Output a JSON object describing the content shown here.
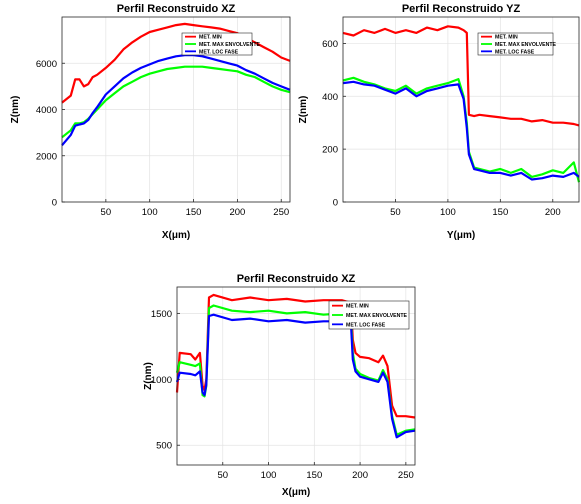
{
  "chart_data": [
    {
      "type": "line",
      "title": "Perfil Reconstruido XZ",
      "xlabel": "X(μm)",
      "ylabel": "Z(nm)",
      "xlim": [
        0,
        260
      ],
      "ylim": [
        0,
        8000
      ],
      "xticks": [
        "50",
        "100",
        "150",
        "200",
        "250"
      ],
      "yticks": [
        "0",
        "2000",
        "4000",
        "6000"
      ],
      "grid": true,
      "legend_position": "top-right",
      "x": [
        0,
        10,
        15,
        20,
        25,
        30,
        35,
        40,
        50,
        60,
        70,
        80,
        90,
        100,
        110,
        120,
        130,
        140,
        150,
        160,
        170,
        180,
        190,
        200,
        210,
        220,
        230,
        240,
        250,
        260
      ],
      "series": [
        {
          "name": "MET. MIN",
          "color": "#ff0000",
          "values": [
            4300,
            4600,
            5300,
            5300,
            5000,
            5100,
            5400,
            5500,
            5800,
            6150,
            6600,
            6900,
            7150,
            7350,
            7450,
            7550,
            7650,
            7700,
            7650,
            7600,
            7550,
            7500,
            7400,
            7300,
            7100,
            6900,
            6700,
            6500,
            6250,
            6100
          ]
        },
        {
          "name": "MET. MAX ENVOLVENTE",
          "color": "#00ff00",
          "values": [
            2800,
            3100,
            3400,
            3400,
            3450,
            3600,
            3800,
            4000,
            4400,
            4700,
            5000,
            5200,
            5400,
            5550,
            5650,
            5750,
            5800,
            5850,
            5850,
            5850,
            5800,
            5750,
            5700,
            5650,
            5500,
            5400,
            5200,
            5000,
            4850,
            4750
          ]
        },
        {
          "name": "MET. LOC FASE",
          "color": "#0000ff",
          "values": [
            2450,
            2900,
            3300,
            3350,
            3400,
            3550,
            3850,
            4100,
            4650,
            5000,
            5350,
            5600,
            5800,
            5950,
            6100,
            6200,
            6300,
            6350,
            6350,
            6300,
            6200,
            6100,
            6000,
            5900,
            5700,
            5550,
            5350,
            5150,
            5000,
            4850
          ]
        }
      ]
    },
    {
      "type": "line",
      "title": "Perfil Reconstruido YZ",
      "xlabel": "Y(μm)",
      "ylabel": "Z(nm)",
      "xlim": [
        0,
        225
      ],
      "ylim": [
        0,
        700
      ],
      "xticks": [
        "50",
        "100",
        "150",
        "200"
      ],
      "yticks": [
        "0",
        "200",
        "400",
        "600"
      ],
      "grid": true,
      "legend_position": "top-right",
      "x": [
        0,
        10,
        20,
        30,
        40,
        50,
        60,
        70,
        80,
        90,
        100,
        110,
        115,
        118,
        120,
        125,
        130,
        140,
        150,
        160,
        170,
        180,
        190,
        200,
        210,
        220,
        225
      ],
      "series": [
        {
          "name": "MET. MIN",
          "color": "#ff0000",
          "values": [
            640,
            630,
            650,
            640,
            655,
            640,
            650,
            640,
            660,
            650,
            665,
            660,
            650,
            640,
            330,
            325,
            330,
            325,
            320,
            315,
            315,
            305,
            310,
            300,
            300,
            295,
            290
          ]
        },
        {
          "name": "MET. MAX ENVOLVENTE",
          "color": "#00ff00",
          "values": [
            460,
            470,
            455,
            445,
            430,
            420,
            440,
            410,
            430,
            440,
            450,
            465,
            400,
            300,
            190,
            130,
            125,
            115,
            125,
            110,
            125,
            95,
            105,
            120,
            110,
            150,
            75
          ]
        },
        {
          "name": "MET. LOC FASE",
          "color": "#0000ff",
          "values": [
            450,
            455,
            445,
            440,
            425,
            410,
            430,
            400,
            420,
            430,
            440,
            445,
            390,
            280,
            180,
            125,
            120,
            110,
            110,
            100,
            110,
            85,
            90,
            100,
            95,
            110,
            95
          ]
        }
      ]
    },
    {
      "type": "line",
      "title": "Perfil Reconstruido XZ",
      "xlabel": "X(μm)",
      "ylabel": "Z(nm)",
      "xlim": [
        0,
        260
      ],
      "ylim": [
        350,
        1700
      ],
      "xticks": [
        "50",
        "100",
        "150",
        "200",
        "250"
      ],
      "yticks": [
        "500",
        "1000",
        "1500"
      ],
      "grid": true,
      "legend_position": "top-right",
      "x": [
        0,
        3,
        15,
        20,
        25,
        28,
        30,
        32,
        35,
        40,
        60,
        80,
        100,
        120,
        140,
        160,
        180,
        190,
        192,
        195,
        200,
        210,
        220,
        225,
        230,
        235,
        240,
        250,
        260
      ],
      "series": [
        {
          "name": "MET. MIN",
          "color": "#ff0000",
          "values": [
            900,
            1200,
            1190,
            1150,
            1200,
            950,
            920,
            1000,
            1620,
            1640,
            1600,
            1620,
            1600,
            1610,
            1590,
            1600,
            1600,
            1580,
            1300,
            1200,
            1170,
            1160,
            1130,
            1180,
            1100,
            800,
            720,
            720,
            710
          ]
        },
        {
          "name": "MET. MAX ENVOLVENTE",
          "color": "#00ff00",
          "values": [
            1050,
            1130,
            1110,
            1100,
            1120,
            880,
            870,
            950,
            1540,
            1560,
            1520,
            1510,
            1520,
            1500,
            1510,
            1490,
            1500,
            1480,
            1200,
            1080,
            1040,
            1010,
            990,
            1070,
            1000,
            720,
            580,
            610,
            620
          ]
        },
        {
          "name": "MET. LOC FASE",
          "color": "#0000ff",
          "values": [
            980,
            1050,
            1040,
            1030,
            1060,
            900,
            880,
            960,
            1480,
            1490,
            1450,
            1460,
            1440,
            1450,
            1430,
            1440,
            1440,
            1430,
            1150,
            1060,
            1020,
            1000,
            980,
            1050,
            980,
            700,
            560,
            600,
            610
          ]
        }
      ]
    }
  ]
}
